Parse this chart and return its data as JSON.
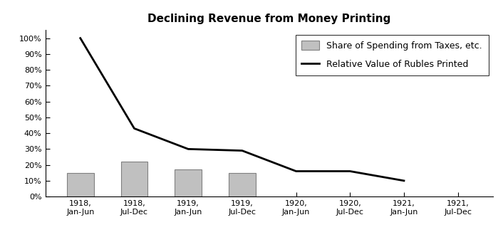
{
  "title": "Declining Revenue from Money Printing",
  "categories": [
    "1918,\nJan-Jun",
    "1918,\nJul-Dec",
    "1919,\nJan-Jun",
    "1919,\nJul-Dec",
    "1920,\nJan-Jun",
    "1920,\nJul-Dec",
    "1921,\nJan-Jun",
    "1921,\nJul-Dec"
  ],
  "bar_values": [
    15,
    22,
    17,
    15,
    null,
    null,
    null,
    null
  ],
  "line_values": [
    100,
    43,
    30,
    29,
    16,
    16,
    10,
    null
  ],
  "bar_color": "#c0c0c0",
  "bar_edgecolor": "#808080",
  "line_color": "#000000",
  "line_width": 2.0,
  "ylim": [
    0,
    105
  ],
  "yticks": [
    0,
    10,
    20,
    30,
    40,
    50,
    60,
    70,
    80,
    90,
    100
  ],
  "ytick_labels": [
    "0%",
    "10%",
    "20%",
    "30%",
    "40%",
    "50%",
    "60%",
    "70%",
    "80%",
    "90%",
    "100%"
  ],
  "legend_bar_label": "Share of Spending from Taxes, etc.",
  "legend_line_label": "Relative Value of Rubles Printed",
  "background_color": "#ffffff",
  "title_fontsize": 11,
  "tick_fontsize": 8,
  "legend_fontsize": 9,
  "bar_width": 0.5
}
